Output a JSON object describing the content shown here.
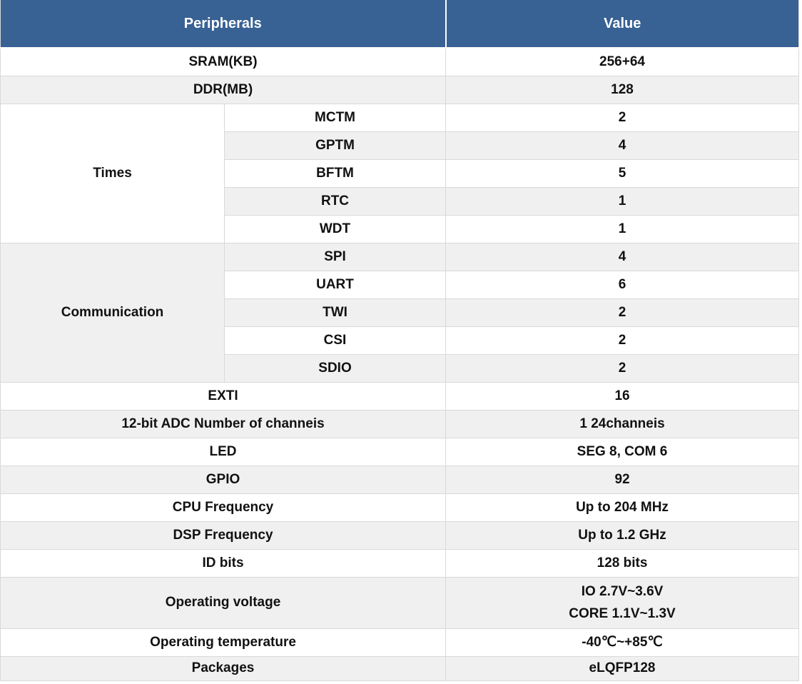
{
  "table": {
    "header": {
      "col1": "Peripherals",
      "col2": "Value"
    },
    "groups": {
      "times": "Times",
      "communication": "Communication"
    },
    "rows": [
      {
        "label": "SRAM(KB)",
        "value": "256+64"
      },
      {
        "label": "DDR(MB)",
        "value": "128"
      },
      {
        "label": "MCTM",
        "value": "2"
      },
      {
        "label": "GPTM",
        "value": "4"
      },
      {
        "label": "BFTM",
        "value": "5"
      },
      {
        "label": "RTC",
        "value": "1"
      },
      {
        "label": "WDT",
        "value": "1"
      },
      {
        "label": "SPI",
        "value": "4"
      },
      {
        "label": "UART",
        "value": "6"
      },
      {
        "label": "TWI",
        "value": "2"
      },
      {
        "label": "CSI",
        "value": "2"
      },
      {
        "label": "SDIO",
        "value": "2"
      },
      {
        "label": "EXTI",
        "value": "16"
      },
      {
        "label": "12-bit ADC Number of channeis",
        "value": "1 24channeis"
      },
      {
        "label": "LED",
        "value": "SEG 8, COM 6"
      },
      {
        "label": "GPIO",
        "value": "92"
      },
      {
        "label": "CPU Frequency",
        "value": "Up to 204 MHz"
      },
      {
        "label": "DSP Frequency",
        "value": "Up to 1.2 GHz"
      },
      {
        "label": "ID bits",
        "value": "128 bits"
      },
      {
        "label": "Operating voltage",
        "value_line1": "IO 2.7V~3.6V",
        "value_line2": "CORE 1.1V~1.3V"
      },
      {
        "label": "Operating temperature",
        "value": "-40℃~+85℃"
      },
      {
        "label": "Packages",
        "value": "eLQFP128"
      }
    ],
    "colors": {
      "header_bg": "#386194",
      "stripe_bg": "#f0f0f0",
      "border": "#d9d9d9"
    }
  }
}
